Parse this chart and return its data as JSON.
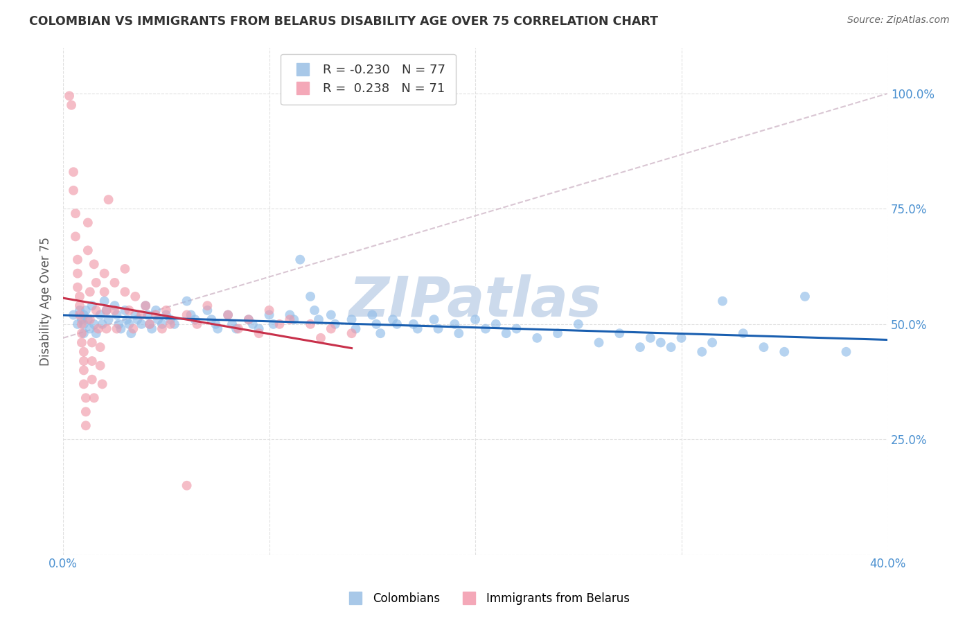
{
  "title": "COLOMBIAN VS IMMIGRANTS FROM BELARUS DISABILITY AGE OVER 75 CORRELATION CHART",
  "source": "Source: ZipAtlas.com",
  "ylabel": "Disability Age Over 75",
  "xlim": [
    0.0,
    0.4
  ],
  "ylim": [
    0.0,
    1.1
  ],
  "blue_color": "#90bce8",
  "pink_color": "#f09aaa",
  "blue_line_color": "#1a5fb0",
  "pink_line_color": "#c8304a",
  "dashed_line_color": "#d0b8c8",
  "watermark_text": "ZIPatlas",
  "watermark_color": "#ccdaec",
  "background_color": "#ffffff",
  "grid_color": "#e0e0e0",
  "title_color": "#333333",
  "axis_color": "#4a90d0",
  "blue_scatter": [
    [
      0.005,
      0.52
    ],
    [
      0.007,
      0.5
    ],
    [
      0.008,
      0.53
    ],
    [
      0.009,
      0.51
    ],
    [
      0.01,
      0.52
    ],
    [
      0.01,
      0.5
    ],
    [
      0.01,
      0.48
    ],
    [
      0.011,
      0.53
    ],
    [
      0.012,
      0.51
    ],
    [
      0.013,
      0.49
    ],
    [
      0.014,
      0.54
    ],
    [
      0.015,
      0.5
    ],
    [
      0.016,
      0.48
    ],
    [
      0.018,
      0.52
    ],
    [
      0.019,
      0.5
    ],
    [
      0.02,
      0.55
    ],
    [
      0.021,
      0.53
    ],
    [
      0.022,
      0.51
    ],
    [
      0.025,
      0.54
    ],
    [
      0.026,
      0.52
    ],
    [
      0.027,
      0.5
    ],
    [
      0.028,
      0.49
    ],
    [
      0.03,
      0.53
    ],
    [
      0.031,
      0.51
    ],
    [
      0.032,
      0.5
    ],
    [
      0.033,
      0.48
    ],
    [
      0.035,
      0.52
    ],
    [
      0.036,
      0.51
    ],
    [
      0.038,
      0.5
    ],
    [
      0.04,
      0.54
    ],
    [
      0.041,
      0.52
    ],
    [
      0.042,
      0.5
    ],
    [
      0.043,
      0.49
    ],
    [
      0.045,
      0.53
    ],
    [
      0.046,
      0.51
    ],
    [
      0.048,
      0.5
    ],
    [
      0.05,
      0.52
    ],
    [
      0.052,
      0.51
    ],
    [
      0.054,
      0.5
    ],
    [
      0.06,
      0.55
    ],
    [
      0.062,
      0.52
    ],
    [
      0.064,
      0.51
    ],
    [
      0.07,
      0.53
    ],
    [
      0.072,
      0.51
    ],
    [
      0.074,
      0.5
    ],
    [
      0.075,
      0.49
    ],
    [
      0.08,
      0.52
    ],
    [
      0.082,
      0.5
    ],
    [
      0.084,
      0.49
    ],
    [
      0.09,
      0.51
    ],
    [
      0.092,
      0.5
    ],
    [
      0.095,
      0.49
    ],
    [
      0.1,
      0.52
    ],
    [
      0.102,
      0.5
    ],
    [
      0.11,
      0.52
    ],
    [
      0.112,
      0.51
    ],
    [
      0.115,
      0.64
    ],
    [
      0.12,
      0.56
    ],
    [
      0.122,
      0.53
    ],
    [
      0.124,
      0.51
    ],
    [
      0.13,
      0.52
    ],
    [
      0.132,
      0.5
    ],
    [
      0.14,
      0.51
    ],
    [
      0.142,
      0.49
    ],
    [
      0.15,
      0.52
    ],
    [
      0.152,
      0.5
    ],
    [
      0.154,
      0.48
    ],
    [
      0.16,
      0.51
    ],
    [
      0.162,
      0.5
    ],
    [
      0.17,
      0.5
    ],
    [
      0.172,
      0.49
    ],
    [
      0.18,
      0.51
    ],
    [
      0.182,
      0.49
    ],
    [
      0.19,
      0.5
    ],
    [
      0.192,
      0.48
    ],
    [
      0.2,
      0.51
    ],
    [
      0.205,
      0.49
    ],
    [
      0.21,
      0.5
    ],
    [
      0.215,
      0.48
    ],
    [
      0.22,
      0.49
    ],
    [
      0.23,
      0.47
    ],
    [
      0.24,
      0.48
    ],
    [
      0.25,
      0.5
    ],
    [
      0.26,
      0.46
    ],
    [
      0.27,
      0.48
    ],
    [
      0.28,
      0.45
    ],
    [
      0.285,
      0.47
    ],
    [
      0.29,
      0.46
    ],
    [
      0.295,
      0.45
    ],
    [
      0.3,
      0.47
    ],
    [
      0.31,
      0.44
    ],
    [
      0.315,
      0.46
    ],
    [
      0.32,
      0.55
    ],
    [
      0.33,
      0.48
    ],
    [
      0.34,
      0.45
    ],
    [
      0.35,
      0.44
    ],
    [
      0.36,
      0.56
    ],
    [
      0.38,
      0.44
    ]
  ],
  "pink_scatter": [
    [
      0.003,
      0.995
    ],
    [
      0.004,
      0.975
    ],
    [
      0.005,
      0.83
    ],
    [
      0.005,
      0.79
    ],
    [
      0.006,
      0.74
    ],
    [
      0.006,
      0.69
    ],
    [
      0.007,
      0.64
    ],
    [
      0.007,
      0.61
    ],
    [
      0.007,
      0.58
    ],
    [
      0.008,
      0.56
    ],
    [
      0.008,
      0.54
    ],
    [
      0.008,
      0.52
    ],
    [
      0.009,
      0.5
    ],
    [
      0.009,
      0.48
    ],
    [
      0.009,
      0.46
    ],
    [
      0.01,
      0.44
    ],
    [
      0.01,
      0.42
    ],
    [
      0.01,
      0.4
    ],
    [
      0.01,
      0.37
    ],
    [
      0.011,
      0.34
    ],
    [
      0.011,
      0.31
    ],
    [
      0.011,
      0.28
    ],
    [
      0.012,
      0.72
    ],
    [
      0.012,
      0.66
    ],
    [
      0.013,
      0.57
    ],
    [
      0.013,
      0.51
    ],
    [
      0.014,
      0.46
    ],
    [
      0.014,
      0.42
    ],
    [
      0.014,
      0.38
    ],
    [
      0.015,
      0.34
    ],
    [
      0.015,
      0.63
    ],
    [
      0.016,
      0.59
    ],
    [
      0.016,
      0.53
    ],
    [
      0.017,
      0.49
    ],
    [
      0.018,
      0.45
    ],
    [
      0.018,
      0.41
    ],
    [
      0.019,
      0.37
    ],
    [
      0.02,
      0.61
    ],
    [
      0.02,
      0.57
    ],
    [
      0.021,
      0.53
    ],
    [
      0.021,
      0.49
    ],
    [
      0.022,
      0.77
    ],
    [
      0.025,
      0.59
    ],
    [
      0.025,
      0.53
    ],
    [
      0.026,
      0.49
    ],
    [
      0.03,
      0.62
    ],
    [
      0.03,
      0.57
    ],
    [
      0.032,
      0.53
    ],
    [
      0.034,
      0.49
    ],
    [
      0.035,
      0.56
    ],
    [
      0.038,
      0.52
    ],
    [
      0.04,
      0.54
    ],
    [
      0.042,
      0.5
    ],
    [
      0.045,
      0.52
    ],
    [
      0.048,
      0.49
    ],
    [
      0.05,
      0.53
    ],
    [
      0.052,
      0.5
    ],
    [
      0.06,
      0.52
    ],
    [
      0.065,
      0.5
    ],
    [
      0.07,
      0.54
    ],
    [
      0.08,
      0.52
    ],
    [
      0.085,
      0.49
    ],
    [
      0.09,
      0.51
    ],
    [
      0.095,
      0.48
    ],
    [
      0.1,
      0.53
    ],
    [
      0.105,
      0.5
    ],
    [
      0.11,
      0.51
    ],
    [
      0.12,
      0.5
    ],
    [
      0.125,
      0.47
    ],
    [
      0.13,
      0.49
    ],
    [
      0.14,
      0.48
    ],
    [
      0.06,
      0.15
    ]
  ]
}
